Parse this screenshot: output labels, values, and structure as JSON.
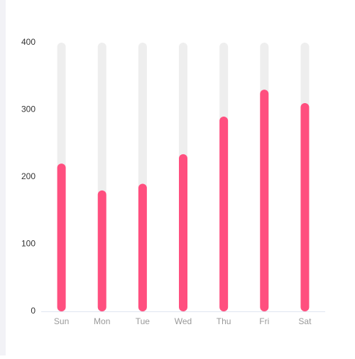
{
  "chart_data": {
    "type": "bar",
    "categories": [
      "Sun",
      "Mon",
      "Tue",
      "Wed",
      "Thu",
      "Fri",
      "Sat"
    ],
    "values": [
      220,
      180,
      190,
      234,
      290,
      330,
      310
    ],
    "color": "#ff4f7f",
    "background_color": "#eeeeee",
    "ylim": [
      0,
      400
    ],
    "yticks": [
      0,
      100,
      200,
      300,
      400
    ],
    "grid": false
  }
}
